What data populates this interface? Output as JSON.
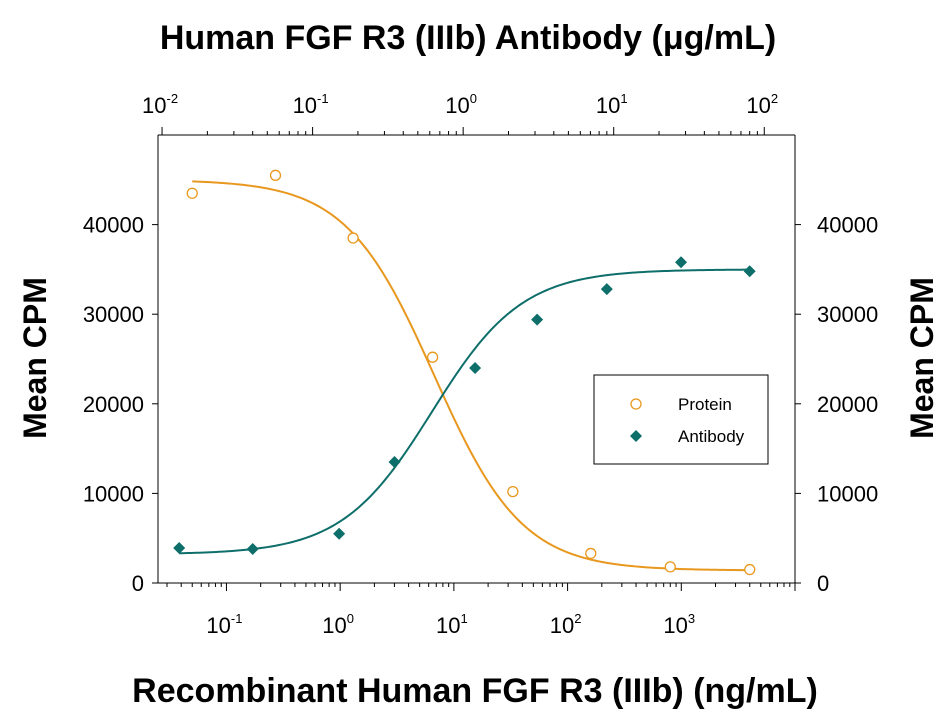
{
  "chart_data": {
    "type": "scatter",
    "title_top": "Human FGF R3 (IIIb) Antibody (μg/mL)",
    "xlabel": "Recombinant Human FGF R3 (IIIb) (ng/mL)",
    "ylabel_left": "Mean CPM",
    "ylabel_right": "Mean CPM",
    "x_scale": "log",
    "x_bottom_range": [
      0.025,
      10000
    ],
    "x_top_range": [
      0.0094,
      160
    ],
    "ylim": [
      0,
      50000
    ],
    "y_ticks": [
      0,
      10000,
      20000,
      30000,
      40000
    ],
    "y_tick_labels": [
      "0",
      "10000",
      "20000",
      "30000",
      "40000"
    ],
    "x_bottom_ticks": [
      {
        "base": "10",
        "exp": "-1",
        "value": 0.1
      },
      {
        "base": "10",
        "exp": "0",
        "value": 1
      },
      {
        "base": "10",
        "exp": "1",
        "value": 10
      },
      {
        "base": "10",
        "exp": "2",
        "value": 100
      },
      {
        "base": "10",
        "exp": "3",
        "value": 1000
      }
    ],
    "x_top_ticks": [
      {
        "base": "10",
        "exp": "-2",
        "value": 0.01
      },
      {
        "base": "10",
        "exp": "-1",
        "value": 0.1
      },
      {
        "base": "10",
        "exp": "0",
        "value": 1
      },
      {
        "base": "10",
        "exp": "1",
        "value": 10
      },
      {
        "base": "10",
        "exp": "2",
        "value": 100
      }
    ],
    "grid": false,
    "legend_position": "right",
    "series": [
      {
        "name": "Protein",
        "axis": "bottom",
        "marker": "open-circle",
        "color": "#E8981E",
        "x": [
          0.05,
          0.27,
          1.3,
          6.5,
          33,
          160,
          800,
          4000
        ],
        "y": [
          43500,
          45500,
          38500,
          25200,
          10200,
          3300,
          1800,
          1500
        ],
        "fit": {
          "top": 45000,
          "bottom": 1400,
          "ec50": 6.7,
          "hill": 1.12
        }
      },
      {
        "name": "Antibody",
        "axis": "top",
        "marker": "filled-diamond",
        "color": "#0E6E6A",
        "x": [
          0.013,
          0.04,
          0.15,
          0.35,
          1.2,
          3.1,
          9,
          28,
          80
        ],
        "y": [
          3900,
          3800,
          5500,
          13500,
          24000,
          29400,
          32800,
          35800,
          34800
        ],
        "fit": {
          "top": 35000,
          "bottom": 3200,
          "ec50": 0.62,
          "hill": 1.45
        }
      }
    ]
  }
}
